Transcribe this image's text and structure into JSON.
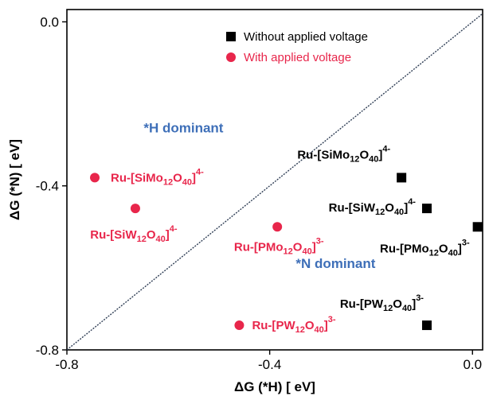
{
  "chart_data": {
    "type": "scatter",
    "xlabel": "ΔG (*H) [ eV]",
    "ylabel": "ΔG (*N) [ eV]",
    "xlim": [
      -0.8,
      0.02
    ],
    "ylim": [
      -0.8,
      0.03
    ],
    "xticks": [
      "-0.8",
      "-0.4",
      "0.0"
    ],
    "xtick_values": [
      -0.8,
      -0.4,
      0.0
    ],
    "yticks": [
      "0.0",
      "-0.4",
      "-0.8"
    ],
    "ytick_values": [
      0.0,
      -0.4,
      -0.8
    ],
    "grid": false,
    "legend_position": "top-right",
    "diagonal_line": "y = x",
    "series": [
      {
        "name": "Without applied voltage",
        "marker": "square",
        "color": "#000000",
        "points": [
          {
            "x": -0.14,
            "y": -0.38,
            "label": "Ru-[SiMo12O40]4-"
          },
          {
            "x": -0.09,
            "y": -0.455,
            "label": "Ru-[SiW12O40]4-"
          },
          {
            "x": 0.01,
            "y": -0.5,
            "label": "Ru-[PMo12O40]3-"
          },
          {
            "x": -0.09,
            "y": -0.74,
            "label": "Ru-[PW12O40]3-"
          }
        ]
      },
      {
        "name": "With applied voltage",
        "marker": "circle",
        "color": "#e8264b",
        "points": [
          {
            "x": -0.745,
            "y": -0.38,
            "label": "Ru-[SiMo12O40]4-"
          },
          {
            "x": -0.665,
            "y": -0.455,
            "label": "Ru-[SiW12O40]4-"
          },
          {
            "x": -0.385,
            "y": -0.5,
            "label": "Ru-[PMo12O40]3-"
          },
          {
            "x": -0.46,
            "y": -0.74,
            "label": "Ru-[PW12O40]3-"
          }
        ]
      }
    ],
    "annotations": [
      {
        "text": "*H dominant",
        "x": -0.57,
        "y": -0.27,
        "color": "#3e6fb8"
      },
      {
        "text": "*N dominant",
        "x": -0.27,
        "y": -0.6,
        "color": "#3e6fb8"
      }
    ]
  }
}
